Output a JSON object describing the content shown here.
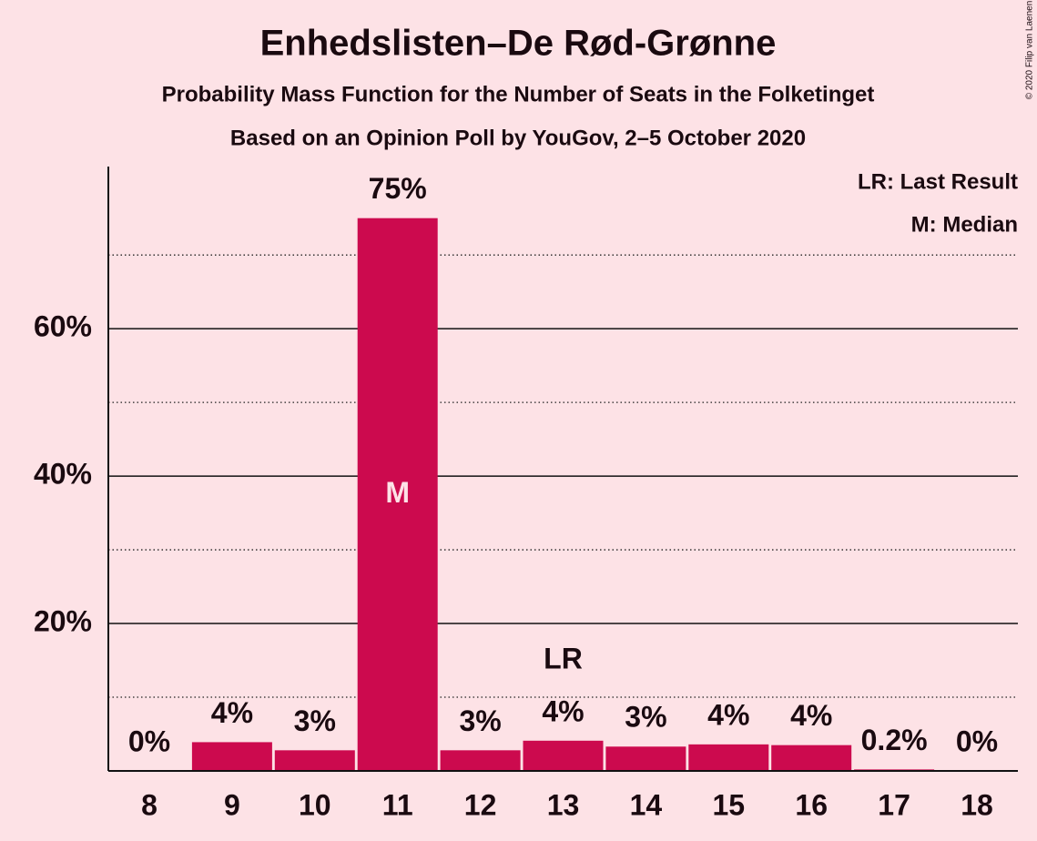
{
  "chart_data": {
    "type": "bar",
    "title": "Enhedslisten–De Rød-Grønne",
    "subtitle": "Probability Mass Function for the Number of Seats in the Folketinget",
    "subtitle2": "Based on an Opinion Poll by YouGov, 2–5 October 2020",
    "copyright": "© 2020 Filip van Laenen",
    "legend": [
      "LR: Last Result",
      "M: Median"
    ],
    "categories": [
      "8",
      "9",
      "10",
      "11",
      "12",
      "13",
      "14",
      "15",
      "16",
      "17",
      "18"
    ],
    "values": [
      0,
      3.9,
      2.8,
      75,
      2.8,
      4.1,
      3.3,
      3.6,
      3.5,
      0.2,
      0
    ],
    "value_labels": [
      "0%",
      "4%",
      "3%",
      "75%",
      "3%",
      "4%",
      "3%",
      "4%",
      "4%",
      "0.2%",
      "0%"
    ],
    "color": "#cc0a4e",
    "ylim": [
      0,
      82
    ],
    "yticks": [
      {
        "value": 20,
        "label": "20%"
      },
      {
        "value": 40,
        "label": "40%"
      },
      {
        "value": 60,
        "label": "60%"
      }
    ],
    "minor_yticks": [
      10,
      30,
      50,
      70
    ],
    "grid": true,
    "annotations": [
      {
        "category": 3,
        "text": "M"
      },
      {
        "category": 5,
        "text": "LR"
      }
    ]
  }
}
